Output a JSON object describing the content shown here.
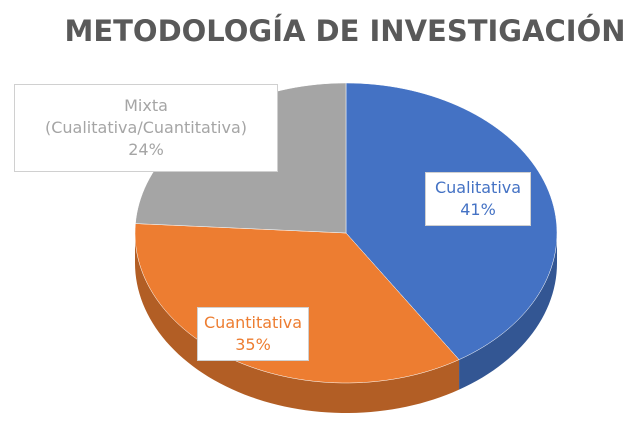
{
  "chart_data": {
    "type": "pie",
    "title": "METODOLOGÍA DE INVESTIGACIÓN",
    "categories": [
      "Cualitativa",
      "Cuantitativa",
      "Mixta (Cualitativa/Cuantitativa)"
    ],
    "values": [
      41,
      35,
      24
    ],
    "value_labels": [
      "41%",
      "35%",
      "24%"
    ],
    "colors": [
      "#4472c4",
      "#ed7d31",
      "#a5a5a5"
    ]
  }
}
